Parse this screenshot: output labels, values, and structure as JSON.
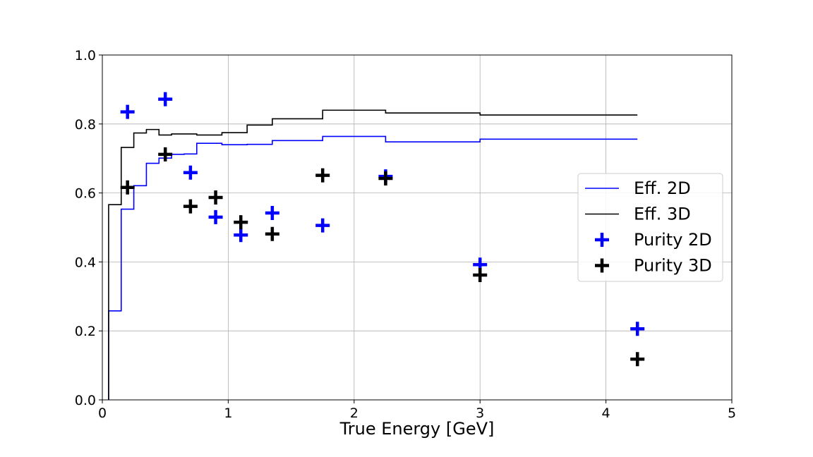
{
  "chart_data": {
    "type": "line",
    "title": "",
    "xlabel": "True Energy [GeV]",
    "ylabel": "",
    "xlim": [
      0,
      5
    ],
    "ylim": [
      0,
      1.0
    ],
    "xticks": [
      "0",
      "1",
      "2",
      "3",
      "4",
      "5"
    ],
    "yticks": [
      "0.0",
      "0.2",
      "0.4",
      "0.6",
      "0.8",
      "1.0"
    ],
    "grid": true,
    "legend_position": "right",
    "series": [
      {
        "name": "Eff. 2D",
        "style": "step",
        "color": "#0000ff",
        "edges": [
          0.05,
          0.15,
          0.25,
          0.35,
          0.45,
          0.55,
          0.65,
          0.75,
          0.85,
          0.95,
          1.05,
          1.15,
          1.25,
          1.35,
          1.45,
          1.55,
          1.75,
          1.95,
          2.25,
          2.75,
          3.0,
          4.25
        ],
        "values": [
          0.258,
          0.553,
          0.621,
          0.686,
          0.701,
          0.712,
          0.713,
          0.744,
          0.744,
          0.74,
          0.74,
          0.741,
          0.741,
          0.752,
          0.752,
          0.752,
          0.764,
          0.764,
          0.748,
          0.748,
          0.756
        ]
      },
      {
        "name": "Eff. 3D",
        "style": "step",
        "color": "#000000",
        "edges": [
          0.05,
          0.15,
          0.25,
          0.35,
          0.45,
          0.55,
          0.65,
          0.75,
          0.85,
          0.95,
          1.05,
          1.15,
          1.25,
          1.35,
          1.45,
          1.55,
          1.75,
          1.95,
          2.25,
          2.75,
          3.0,
          4.25
        ],
        "values": [
          0.566,
          0.732,
          0.774,
          0.784,
          0.768,
          0.771,
          0.771,
          0.768,
          0.768,
          0.775,
          0.775,
          0.797,
          0.797,
          0.815,
          0.815,
          0.815,
          0.84,
          0.84,
          0.832,
          0.832,
          0.826
        ]
      },
      {
        "name": "Purity 2D",
        "style": "plus",
        "color": "#0000ff",
        "x": [
          0.2,
          0.5,
          0.7,
          0.9,
          1.1,
          1.35,
          1.75,
          2.25,
          3.0,
          4.25
        ],
        "values": [
          0.835,
          0.872,
          0.659,
          0.53,
          0.478,
          0.542,
          0.506,
          0.648,
          0.392,
          0.206
        ]
      },
      {
        "name": "Purity 3D",
        "style": "plus",
        "color": "#000000",
        "x": [
          0.2,
          0.5,
          0.7,
          0.9,
          1.1,
          1.35,
          1.75,
          2.25,
          3.0,
          4.25
        ],
        "values": [
          0.616,
          0.712,
          0.561,
          0.587,
          0.515,
          0.481,
          0.651,
          0.642,
          0.362,
          0.118
        ]
      }
    ]
  }
}
